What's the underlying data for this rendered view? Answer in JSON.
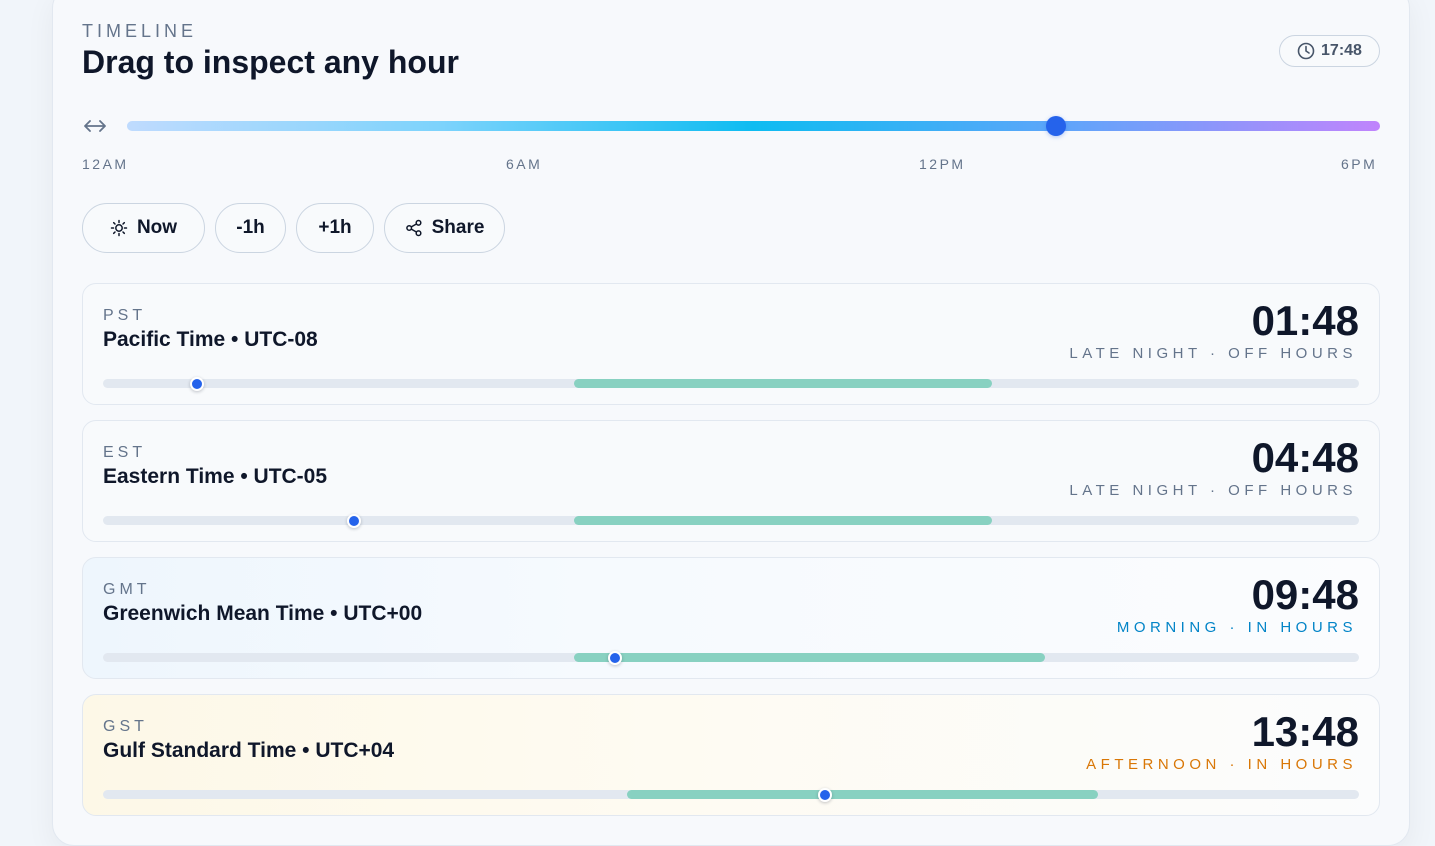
{
  "header": {
    "eyebrow": "TIMELINE",
    "title": "Drag to inspect any hour",
    "current_time": "17:48"
  },
  "timeline": {
    "value_fraction": 0.7417,
    "ticks": [
      "12AM",
      "6AM",
      "12PM",
      "6PM"
    ],
    "gradient_colors": [
      "#bfdbfe",
      "#7dd3fc",
      "#0ebcf1",
      "#60a5fa",
      "#c084fc"
    ],
    "thumb_color": "#2563eb"
  },
  "buttons": {
    "now": "Now",
    "minus": "-1h",
    "plus": "+1h",
    "share": "Share"
  },
  "zones": [
    {
      "abbr": "PST",
      "name": "Pacific Time • UTC-08",
      "time": "01:48",
      "status": "LATE NIGHT · OFF HOURS",
      "status_color": "#64748b",
      "position_fraction": 0.075,
      "work_hours_fraction": [
        0.375,
        0.708
      ]
    },
    {
      "abbr": "EST",
      "name": "Eastern Time • UTC-05",
      "time": "04:48",
      "status": "LATE NIGHT · OFF HOURS",
      "status_color": "#64748b",
      "position_fraction": 0.2,
      "work_hours_fraction": [
        0.375,
        0.708
      ]
    },
    {
      "abbr": "GMT",
      "name": "Greenwich Mean Time • UTC+00",
      "time": "09:48",
      "status": "MORNING · IN HOURS",
      "status_color": "#0284c7",
      "position_fraction": 0.408,
      "work_hours_fraction": [
        0.375,
        0.75
      ]
    },
    {
      "abbr": "GST",
      "name": "Gulf Standard Time • UTC+04",
      "time": "13:48",
      "status": "AFTERNOON · IN HOURS",
      "status_color": "#d97706",
      "position_fraction": 0.575,
      "work_hours_fraction": [
        0.417,
        0.792
      ]
    }
  ]
}
